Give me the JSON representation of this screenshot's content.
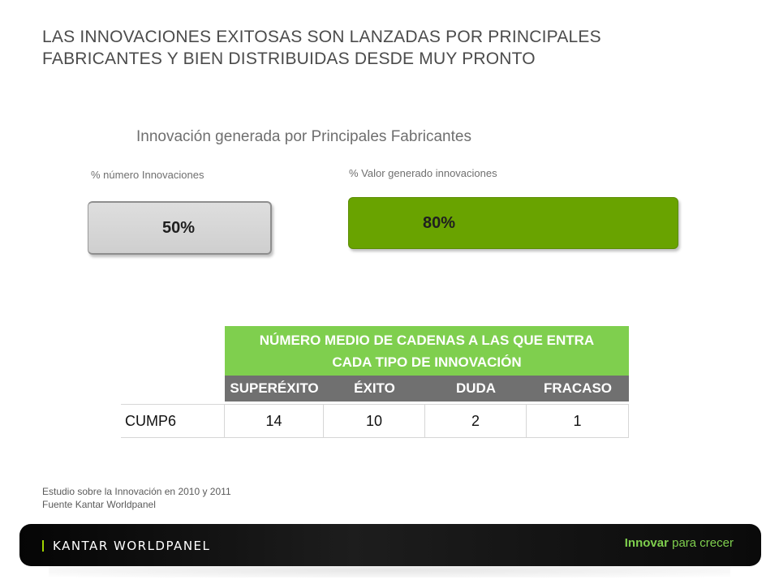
{
  "title": {
    "line1": "LAS INNOVACIONES EXITOSAS SON LANZADAS POR PRINCIPALES",
    "line2": "FABRICANTES Y BIEN DISTRIBUIDAS DESDE MUY PRONTO"
  },
  "subtitle": "Innovación generada por Principales Fabricantes",
  "metrics": {
    "count": {
      "label": "% número Innovaciones",
      "value": "50%",
      "color": "#d4d4d4"
    },
    "value": {
      "label": "% Valor generado innovaciones",
      "value": "80%",
      "color": "#69a300"
    }
  },
  "table": {
    "header_line1": "NÚMERO MEDIO DE CADENAS A LAS QUE ENTRA",
    "header_line2": "CADA TIPO DE INNOVACIÓN",
    "columns": [
      "SUPERÉXITO",
      "ÉXITO",
      "DUDA",
      "FRACASO"
    ],
    "row": {
      "label": "CUMP6",
      "values": [
        "14",
        "10",
        "2",
        "1"
      ]
    },
    "header_color": "#7fcf4e",
    "columns_color": "#707070"
  },
  "footnote": {
    "line1": "Estudio sobre la Innovación en 2010 y 2011",
    "line2": "Fuente Kantar Worldpanel"
  },
  "footer": {
    "brand": "KANTAR WORLDPANEL",
    "tagline_bold": "Innovar",
    "tagline_rest": " para crecer",
    "accent": "#7fcf4e"
  }
}
